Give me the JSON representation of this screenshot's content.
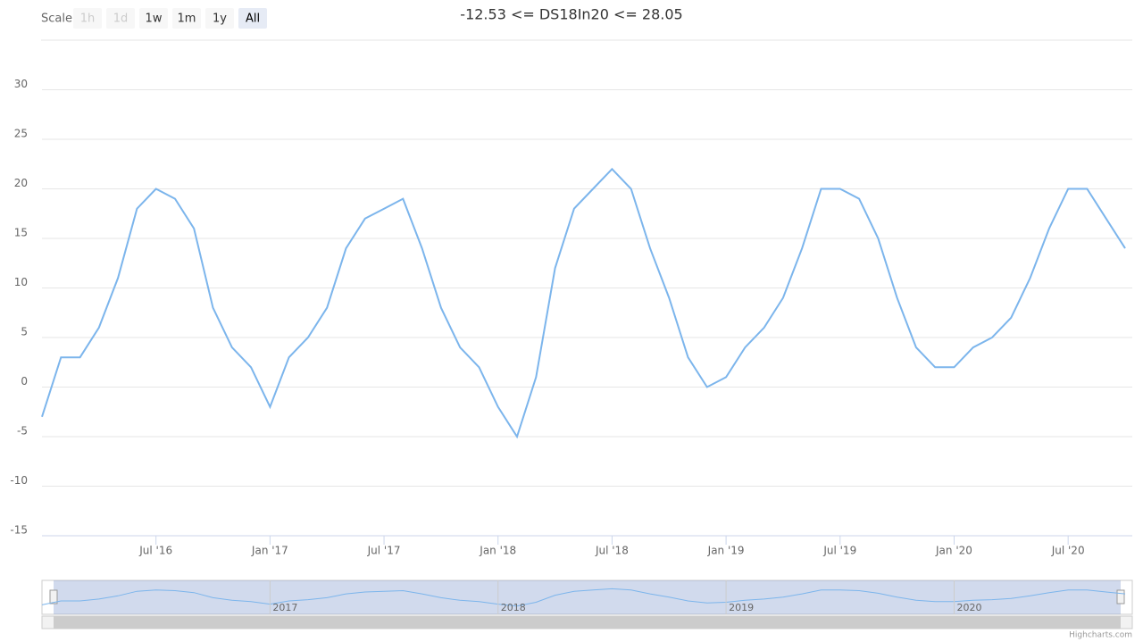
{
  "range_selector": {
    "label": "Scale",
    "buttons": [
      "1h",
      "1d",
      "1w",
      "1m",
      "1y",
      "All"
    ],
    "selected": "All"
  },
  "chart_data": {
    "type": "line",
    "title": "-12.53 <= DS18In20 <= 28.05",
    "x": [
      "2016-01",
      "2016-02",
      "2016-03",
      "2016-04",
      "2016-05",
      "2016-06",
      "2016-07",
      "2016-08",
      "2016-09",
      "2016-10",
      "2016-11",
      "2016-12",
      "2017-01",
      "2017-02",
      "2017-03",
      "2017-04",
      "2017-05",
      "2017-06",
      "2017-07",
      "2017-08",
      "2017-09",
      "2017-10",
      "2017-11",
      "2017-12",
      "2018-01",
      "2018-02",
      "2018-03",
      "2018-04",
      "2018-05",
      "2018-06",
      "2018-07",
      "2018-08",
      "2018-09",
      "2018-10",
      "2018-11",
      "2018-12",
      "2019-01",
      "2019-02",
      "2019-03",
      "2019-04",
      "2019-05",
      "2019-06",
      "2019-07",
      "2019-08",
      "2019-09",
      "2019-10",
      "2019-11",
      "2019-12",
      "2020-01",
      "2020-02",
      "2020-03",
      "2020-04",
      "2020-05",
      "2020-06",
      "2020-07",
      "2020-08",
      "2020-09",
      "2020-10"
    ],
    "series": [
      {
        "name": "DS18In20",
        "color": "#7cb5ec",
        "values": [
          -3,
          3,
          3,
          6,
          11,
          18,
          20,
          19,
          16,
          8,
          4,
          2,
          -2,
          3,
          5,
          8,
          14,
          17,
          18,
          19,
          14,
          8,
          4,
          2,
          -2,
          -5,
          1,
          12,
          18,
          20,
          22,
          20,
          14,
          9,
          3,
          0,
          1,
          4,
          6,
          9,
          14,
          20,
          20,
          19,
          15,
          9,
          4,
          2,
          2,
          4,
          5,
          7,
          11,
          16,
          20,
          20,
          17,
          14
        ]
      }
    ],
    "xlim": [
      "2016-01",
      "2020-10"
    ],
    "xticks": [
      {
        "value": "2016-07",
        "label": "Jul '16"
      },
      {
        "value": "2017-01",
        "label": "Jan '17"
      },
      {
        "value": "2017-07",
        "label": "Jul '17"
      },
      {
        "value": "2018-01",
        "label": "Jan '18"
      },
      {
        "value": "2018-07",
        "label": "Jul '18"
      },
      {
        "value": "2019-01",
        "label": "Jan '19"
      },
      {
        "value": "2019-07",
        "label": "Jul '19"
      },
      {
        "value": "2020-01",
        "label": "Jan '20"
      },
      {
        "value": "2020-07",
        "label": "Jul '20"
      }
    ],
    "ylim": [
      -15,
      35
    ],
    "yticks": [
      -15,
      -10,
      -5,
      0,
      5,
      10,
      15,
      20,
      25,
      30
    ],
    "grid": true
  },
  "navigator": {
    "labels": [
      {
        "value": "2017-01",
        "label": "2017"
      },
      {
        "value": "2018-01",
        "label": "2018"
      },
      {
        "value": "2019-01",
        "label": "2019"
      },
      {
        "value": "2020-01",
        "label": "2020"
      }
    ]
  },
  "credits": "Highcharts.com"
}
